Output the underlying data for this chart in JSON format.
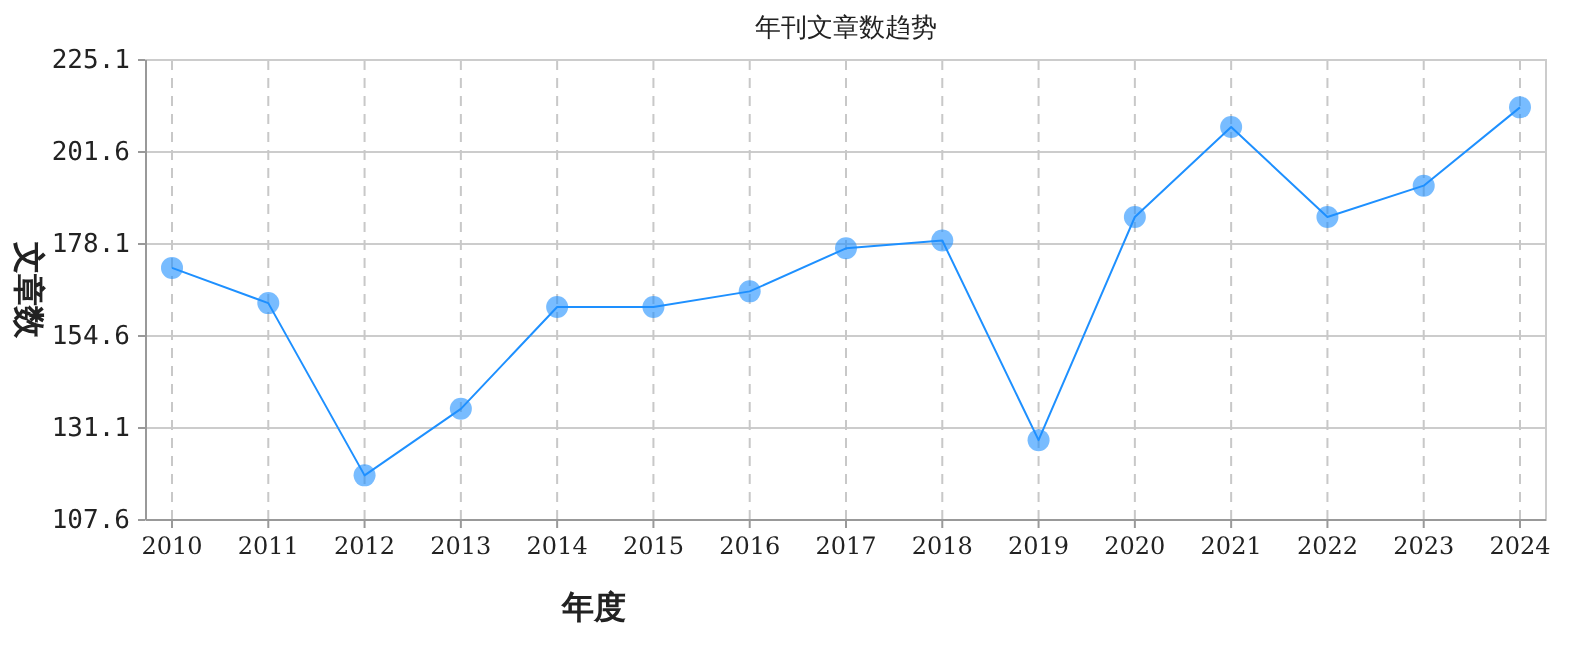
{
  "chart_data": {
    "type": "line",
    "title": "年刊文章数趋势",
    "xlabel": "年度",
    "ylabel": "文章数",
    "categories": [
      "2010",
      "2011",
      "2012",
      "2013",
      "2014",
      "2015",
      "2016",
      "2017",
      "2018",
      "2019",
      "2020",
      "2021",
      "2022",
      "2023",
      "2024"
    ],
    "series": [
      {
        "color": "#1e90ff",
        "values": [
          172,
          163,
          119,
          136,
          162,
          162,
          166,
          177,
          179,
          128,
          185,
          208,
          185,
          193,
          213
        ]
      }
    ],
    "ylim": [
      107.6,
      225.1
    ],
    "yticks": [
      107.6,
      131.1,
      154.6,
      178.1,
      201.6,
      225.1
    ],
    "grid": true,
    "marker": "circle",
    "line_style": "solid"
  }
}
